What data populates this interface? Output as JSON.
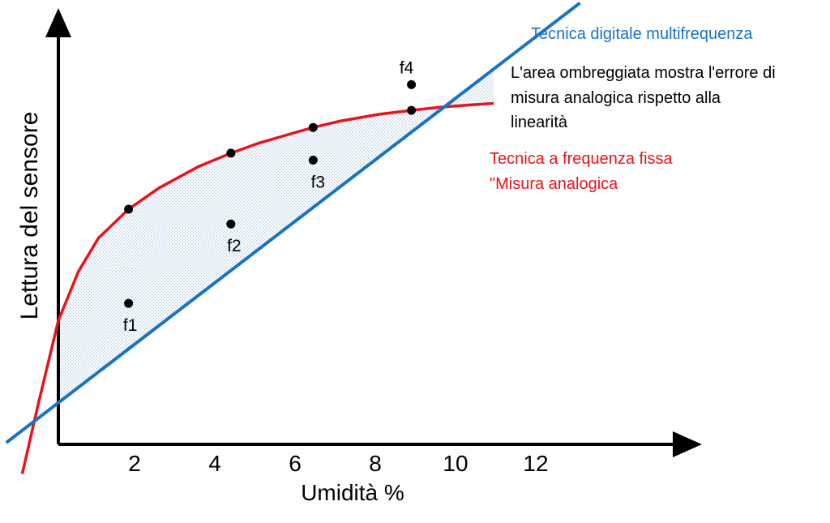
{
  "chart_data": {
    "type": "line",
    "xlabel": "Umidità %",
    "ylabel": "Lettura del sensore",
    "x_ticks": [
      "2",
      "4",
      "6",
      "8",
      "10",
      "12"
    ],
    "series": [
      {
        "name": "Tecnica digitale multifrequenza",
        "color": "#1a73c0",
        "x": [
          -1.3,
          13.0
        ],
        "y": [
          0.0,
          5.65
        ]
      },
      {
        "name": "Tecnica a frequenza fissa \"Misura analogica",
        "color": "#e8141c",
        "x": [
          -0.9,
          -0.5,
          0.0,
          0.5,
          1.0,
          1.75,
          2.5,
          3.5,
          4.3,
          5.0,
          6.0,
          6.35,
          7.0,
          8.0,
          8.8,
          9.5,
          10.0,
          10.85
        ],
        "y": [
          -0.4,
          0.5,
          1.57,
          2.2,
          2.63,
          3.0,
          3.27,
          3.55,
          3.72,
          3.85,
          4.0,
          4.05,
          4.13,
          4.22,
          4.27,
          4.31,
          4.33,
          4.36
        ]
      }
    ],
    "points": [
      {
        "label": "f1",
        "x": 1.75,
        "y": 1.79,
        "curve_y": 3.0
      },
      {
        "label": "f2",
        "x": 4.3,
        "y": 2.81,
        "curve_y": 3.72
      },
      {
        "label": "f3",
        "x": 6.35,
        "y": 3.63,
        "curve_y": 4.05
      },
      {
        "label": "f4",
        "x": 8.8,
        "y": 4.6,
        "curve_y": 4.27
      }
    ],
    "annotation": [
      "L'area ombreggiata mostra l'errore di",
      "misura analogica rispetto alla",
      "linearità"
    ],
    "shaded_range": [
      0.0,
      10.85
    ]
  },
  "colors": {
    "blue": "#1a73c0",
    "red": "#e8141c",
    "shade": "#b9cfe8"
  }
}
